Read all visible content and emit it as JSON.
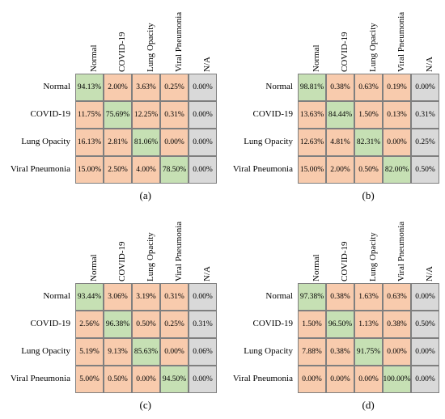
{
  "colors": {
    "diagonal": "#c6e0b4",
    "off_diagonal": "#f8cbad",
    "na_column": "#d9d9d9"
  },
  "chart_data": [
    {
      "type": "heatmap",
      "caption": "(a)",
      "columns": [
        "Normal",
        "COVID-19",
        "Lung Opacity",
        "Viral Pneumonia",
        "N/A"
      ],
      "rows": [
        "Normal",
        "COVID-19",
        "Lung Opacity",
        "Viral Pneumonia"
      ],
      "values": [
        [
          "94.13%",
          "2.00%",
          "3.63%",
          "0.25%",
          "0.00%"
        ],
        [
          "11.75%",
          "75.69%",
          "12.25%",
          "0.31%",
          "0.00%"
        ],
        [
          "16.13%",
          "2.81%",
          "81.06%",
          "0.00%",
          "0.00%"
        ],
        [
          "15.00%",
          "2.50%",
          "4.00%",
          "78.50%",
          "0.00%"
        ]
      ]
    },
    {
      "type": "heatmap",
      "caption": "(b)",
      "columns": [
        "Normal",
        "COVID-19",
        "Lung Opacity",
        "Viral Pneumonia",
        "N/A"
      ],
      "rows": [
        "Normal",
        "COVID-19",
        "Lung Opacity",
        "Viral Pneumonia"
      ],
      "values": [
        [
          "98.81%",
          "0.38%",
          "0.63%",
          "0.19%",
          "0.00%"
        ],
        [
          "13.63%",
          "84.44%",
          "1.50%",
          "0.13%",
          "0.31%"
        ],
        [
          "12.63%",
          "4.81%",
          "82.31%",
          "0.00%",
          "0.25%"
        ],
        [
          "15.00%",
          "2.00%",
          "0.50%",
          "82.00%",
          "0.50%"
        ]
      ]
    },
    {
      "type": "heatmap",
      "caption": "(c)",
      "columns": [
        "Normal",
        "COVID-19",
        "Lung Opacity",
        "Viral Pneumonia",
        "N/A"
      ],
      "rows": [
        "Normal",
        "COVID-19",
        "Lung Opacity",
        "Viral Pneumonia"
      ],
      "values": [
        [
          "93.44%",
          "3.06%",
          "3.19%",
          "0.31%",
          "0.00%"
        ],
        [
          "2.56%",
          "96.38%",
          "0.50%",
          "0.25%",
          "0.31%"
        ],
        [
          "5.19%",
          "9.13%",
          "85.63%",
          "0.00%",
          "0.06%"
        ],
        [
          "5.00%",
          "0.50%",
          "0.00%",
          "94.50%",
          "0.00%"
        ]
      ]
    },
    {
      "type": "heatmap",
      "caption": "(d)",
      "columns": [
        "Normal",
        "COVID-19",
        "Lung Opacity",
        "Viral Pneumonia",
        "N/A"
      ],
      "rows": [
        "Normal",
        "COVID-19",
        "Lung Opacity",
        "Viral Pneumonia"
      ],
      "values": [
        [
          "97.38%",
          "0.38%",
          "1.63%",
          "0.63%",
          "0.00%"
        ],
        [
          "1.50%",
          "96.50%",
          "1.13%",
          "0.38%",
          "0.50%"
        ],
        [
          "7.88%",
          "0.38%",
          "91.75%",
          "0.00%",
          "0.00%"
        ],
        [
          "0.00%",
          "0.00%",
          "0.00%",
          "100.00%",
          "0.00%"
        ]
      ]
    }
  ]
}
